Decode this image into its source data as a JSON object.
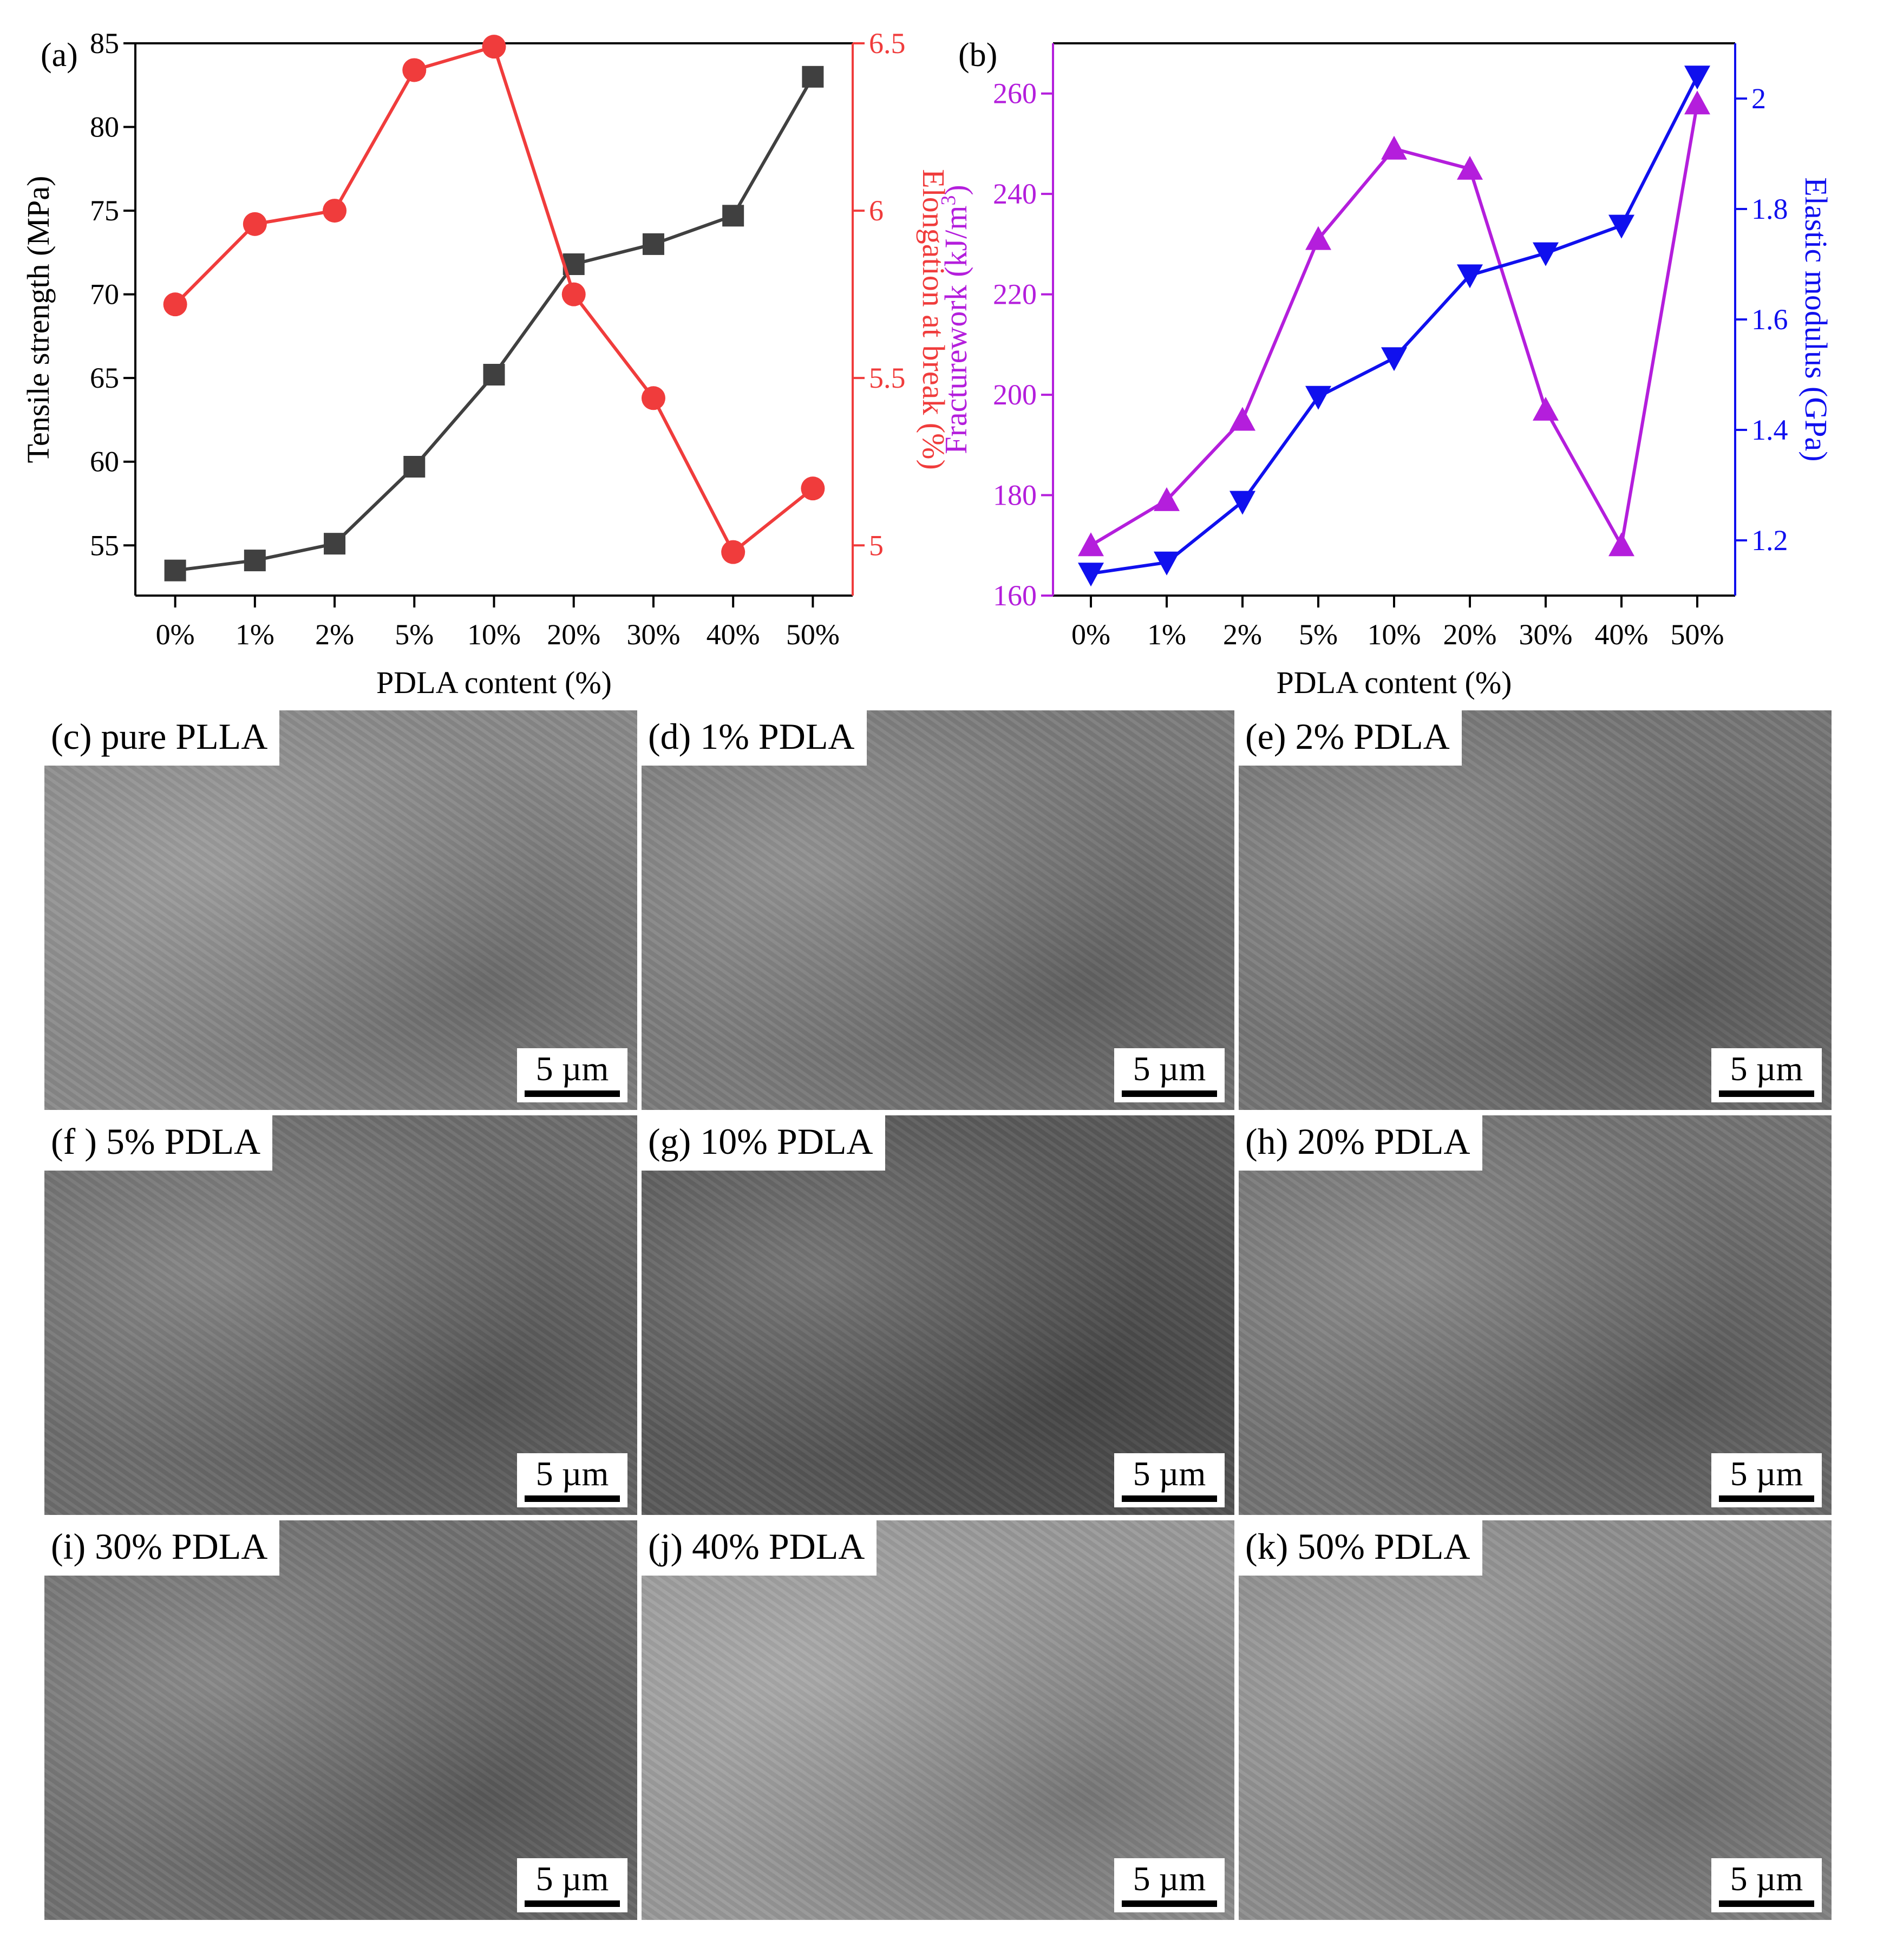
{
  "chart_data": [
    {
      "panel_label": "(a)",
      "type": "line",
      "categories": [
        "0%",
        "1%",
        "2%",
        "5%",
        "10%",
        "20%",
        "30%",
        "40%",
        "50%"
      ],
      "xlabel": "PDLA content (%)",
      "ylabel_left": "Tensile strength (MPa)",
      "ylabel_right": "Elongation at break (%)",
      "ylim_left": [
        52,
        85
      ],
      "ylim_right": [
        4.85,
        6.5
      ],
      "yticks_left": [
        "55",
        "60",
        "65",
        "70",
        "75",
        "80",
        "85"
      ],
      "yticks_right": [
        "5",
        "5.5",
        "6",
        "6.5"
      ],
      "series": [
        {
          "axis": "left",
          "color": "#404040",
          "marker": "square",
          "values": [
            53.5,
            54.1,
            55.1,
            59.7,
            65.2,
            71.8,
            73.0,
            74.7,
            83.0
          ]
        },
        {
          "axis": "right",
          "color": "#f03c3c",
          "marker": "circle",
          "values": [
            5.72,
            5.96,
            6.0,
            6.42,
            6.49,
            5.75,
            5.44,
            4.98,
            5.17
          ]
        }
      ]
    },
    {
      "panel_label": "(b)",
      "type": "line",
      "categories": [
        "0%",
        "1%",
        "2%",
        "5%",
        "10%",
        "20%",
        "30%",
        "40%",
        "50%"
      ],
      "xlabel": "PDLA content (%)",
      "ylabel_left": "Fracturework (kJ/m",
      "ylabel_left_sup": "3",
      "ylabel_left_end": ")",
      "ylabel_right": "Elastic modulus (GPa)",
      "ylim_left": [
        160,
        270
      ],
      "ylim_right": [
        1.1,
        2.1
      ],
      "yticks_left": [
        "160",
        "180",
        "200",
        "220",
        "240",
        "260"
      ],
      "yticks_right": [
        "1.2",
        "1.4",
        "1.6",
        "1.8",
        "2"
      ],
      "series": [
        {
          "axis": "left",
          "color": "#b41edc",
          "marker": "triangle-up",
          "values": [
            170,
            179,
            195,
            231,
            249,
            245,
            197,
            170,
            258
          ]
        },
        {
          "axis": "right",
          "color": "#1010ee",
          "marker": "triangle-down",
          "values": [
            1.14,
            1.16,
            1.27,
            1.46,
            1.53,
            1.68,
            1.72,
            1.77,
            2.04
          ]
        }
      ]
    }
  ],
  "sem_panels": [
    {
      "label": "(c) pure PLLA",
      "scale": "5 µm",
      "tone": "#8a8a8a"
    },
    {
      "label": "(d) 1% PDLA",
      "scale": "5 µm",
      "tone": "#7c7c7c"
    },
    {
      "label": "(e) 2% PDLA",
      "scale": "5 µm",
      "tone": "#767676"
    },
    {
      "label": "(f ) 5% PDLA",
      "scale": "5 µm",
      "tone": "#6e6e6e"
    },
    {
      "label": "(g) 10% PDLA",
      "scale": "5 µm",
      "tone": "#5a5a5a"
    },
    {
      "label": "(h) 20% PDLA",
      "scale": "5 µm",
      "tone": "#747474"
    },
    {
      "label": "(i) 30% PDLA",
      "scale": "5 µm",
      "tone": "#727272"
    },
    {
      "label": "(j) 40% PDLA",
      "scale": "5 µm",
      "tone": "#9a9a9a"
    },
    {
      "label": "(k) 50% PDLA",
      "scale": "5 µm",
      "tone": "#8e8e8e"
    }
  ]
}
